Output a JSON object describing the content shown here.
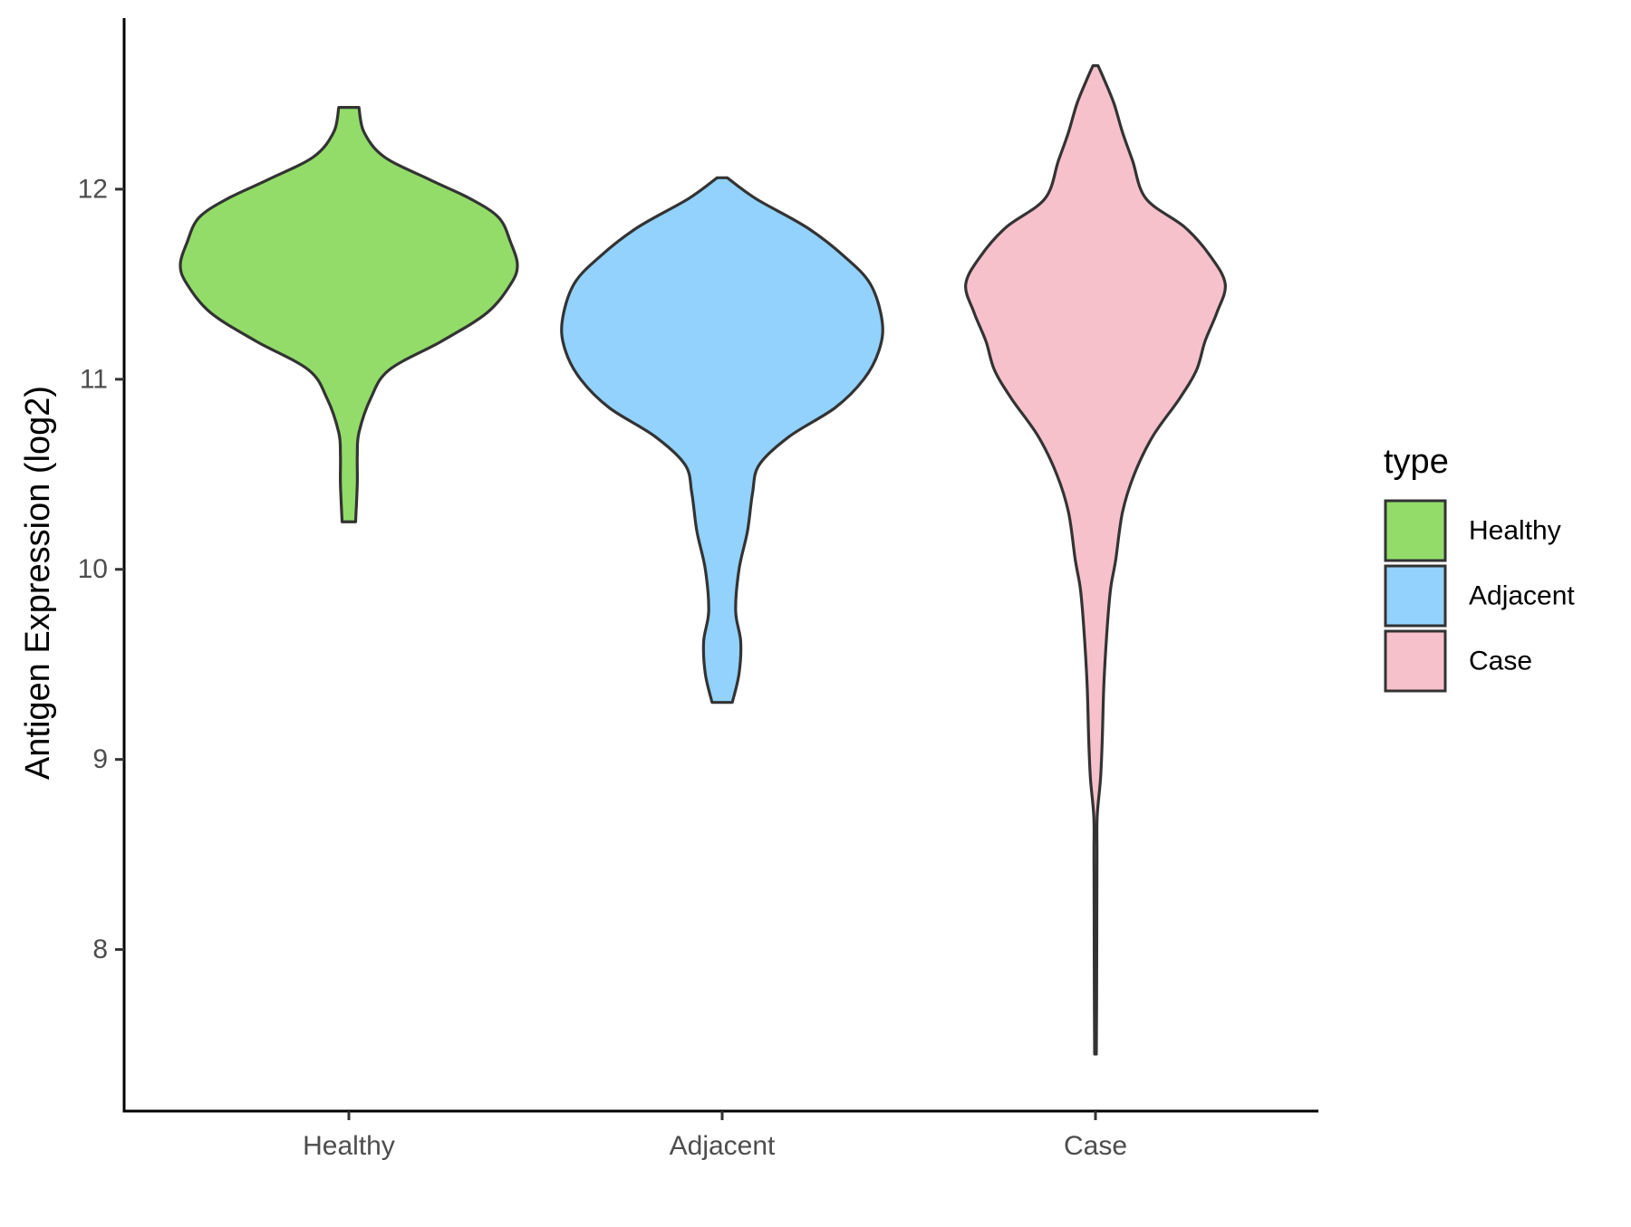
{
  "chart_data": {
    "type": "violin",
    "title": "",
    "xlabel": "",
    "ylabel": "Antigen Expression (log2)",
    "categories": [
      "Healthy",
      "Adjacent",
      "Case"
    ],
    "ylim": [
      7.15,
      12.9
    ],
    "yticks": [
      8,
      9,
      10,
      11,
      12
    ],
    "grid": false,
    "legend": {
      "title": "type",
      "position": "right",
      "entries": [
        "Healthy",
        "Adjacent",
        "Case"
      ]
    },
    "colors": {
      "Healthy": "#93dc6a",
      "Adjacent": "#92d2fd",
      "Case": "#f7c1cc",
      "outline": "#333333"
    },
    "series": [
      {
        "name": "Healthy",
        "min": 10.25,
        "max": 12.43,
        "density": [
          [
            10.25,
            0.04
          ],
          [
            10.45,
            0.05
          ],
          [
            10.6,
            0.05
          ],
          [
            10.72,
            0.06
          ],
          [
            10.9,
            0.13
          ],
          [
            11.05,
            0.24
          ],
          [
            11.2,
            0.55
          ],
          [
            11.35,
            0.82
          ],
          [
            11.5,
            0.96
          ],
          [
            11.6,
            1.0
          ],
          [
            11.72,
            0.96
          ],
          [
            11.85,
            0.89
          ],
          [
            11.95,
            0.72
          ],
          [
            12.05,
            0.48
          ],
          [
            12.17,
            0.21
          ],
          [
            12.3,
            0.09
          ],
          [
            12.43,
            0.06
          ]
        ]
      },
      {
        "name": "Adjacent",
        "min": 9.3,
        "max": 12.06,
        "density": [
          [
            9.3,
            0.06
          ],
          [
            9.45,
            0.1
          ],
          [
            9.62,
            0.11
          ],
          [
            9.78,
            0.08
          ],
          [
            10.0,
            0.1
          ],
          [
            10.2,
            0.15
          ],
          [
            10.4,
            0.18
          ],
          [
            10.55,
            0.22
          ],
          [
            10.7,
            0.4
          ],
          [
            10.85,
            0.67
          ],
          [
            11.0,
            0.84
          ],
          [
            11.15,
            0.93
          ],
          [
            11.3,
            0.95
          ],
          [
            11.5,
            0.88
          ],
          [
            11.65,
            0.72
          ],
          [
            11.8,
            0.5
          ],
          [
            11.95,
            0.2
          ],
          [
            12.06,
            0.03
          ]
        ]
      },
      {
        "name": "Case",
        "min": 7.45,
        "max": 12.65,
        "density": [
          [
            7.45,
            0.005
          ],
          [
            7.8,
            0.007
          ],
          [
            8.2,
            0.008
          ],
          [
            8.5,
            0.009
          ],
          [
            8.7,
            0.01
          ],
          [
            8.9,
            0.03
          ],
          [
            9.1,
            0.04
          ],
          [
            9.4,
            0.05
          ],
          [
            9.7,
            0.07
          ],
          [
            9.9,
            0.09
          ],
          [
            10.05,
            0.12
          ],
          [
            10.3,
            0.16
          ],
          [
            10.5,
            0.23
          ],
          [
            10.7,
            0.34
          ],
          [
            10.9,
            0.5
          ],
          [
            11.05,
            0.6
          ],
          [
            11.2,
            0.65
          ],
          [
            11.35,
            0.72
          ],
          [
            11.5,
            0.77
          ],
          [
            11.65,
            0.68
          ],
          [
            11.8,
            0.53
          ],
          [
            11.95,
            0.3
          ],
          [
            12.15,
            0.22
          ],
          [
            12.3,
            0.16
          ],
          [
            12.45,
            0.11
          ],
          [
            12.58,
            0.05
          ],
          [
            12.65,
            0.015
          ]
        ]
      }
    ]
  }
}
